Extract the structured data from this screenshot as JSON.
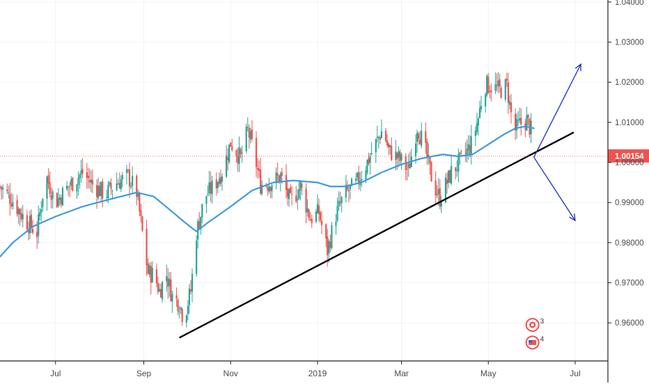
{
  "chart_data": {
    "type": "candlestick",
    "title": "",
    "xlabel": "",
    "ylabel": "",
    "ylim": [
      0.9505,
      1.0405
    ],
    "x_range": [
      "2018-05-23",
      "2019-07-24"
    ],
    "x_ticks": [
      {
        "label": "Jul",
        "date": "2018-07-01"
      },
      {
        "label": "Sep",
        "date": "2018-09-01"
      },
      {
        "label": "Nov",
        "date": "2018-11-01"
      },
      {
        "label": "2019",
        "date": "2019-01-01"
      },
      {
        "label": "Mar",
        "date": "2019-03-01"
      },
      {
        "label": "May",
        "date": "2019-05-01"
      },
      {
        "label": "Jul",
        "date": "2019-07-01"
      }
    ],
    "y_ticks": [
      "0.96000",
      "0.97000",
      "0.98000",
      "0.99000",
      "1.00000",
      "1.01000",
      "1.02000",
      "1.03000",
      "1.04000"
    ],
    "grid": true,
    "last_price": {
      "label": "1.00154",
      "value": 1.00154,
      "color": "#ef5350"
    },
    "up_color": "#26a69a",
    "down_color": "#ef5350",
    "ma_color": "#3d9be0",
    "trendline_color": "#000000",
    "arrow_color": "#1a2fbf",
    "close_anchors": [
      [
        "2018-05-23",
        0.994
      ],
      [
        "2018-06-01",
        0.9905
      ],
      [
        "2018-06-10",
        0.9855
      ],
      [
        "2018-06-18",
        0.9825
      ],
      [
        "2018-06-24",
        0.997
      ],
      [
        "2018-07-01",
        0.99
      ],
      [
        "2018-07-10",
        0.994
      ],
      [
        "2018-07-20",
        0.9975
      ],
      [
        "2018-07-27",
        0.9945
      ],
      [
        "2018-08-05",
        0.992
      ],
      [
        "2018-08-13",
        0.995
      ],
      [
        "2018-08-21",
        0.9965
      ],
      [
        "2018-08-27",
        0.9925
      ],
      [
        "2018-09-01",
        0.98
      ],
      [
        "2018-09-04",
        0.9725
      ],
      [
        "2018-09-08",
        0.972
      ],
      [
        "2018-09-12",
        0.968
      ],
      [
        "2018-09-17",
        0.972
      ],
      [
        "2018-09-21",
        0.9665
      ],
      [
        "2018-09-26",
        0.965
      ],
      [
        "2018-09-29",
        0.961
      ],
      [
        "2018-10-04",
        0.968
      ],
      [
        "2018-10-08",
        0.9825
      ],
      [
        "2018-10-14",
        0.9915
      ],
      [
        "2018-10-21",
        0.9945
      ],
      [
        "2018-10-27",
        0.9985
      ],
      [
        "2018-11-01",
        1.005
      ],
      [
        "2018-11-08",
        1.001
      ],
      [
        "2018-11-13",
        1.008
      ],
      [
        "2018-11-17",
        1.003
      ],
      [
        "2018-11-22",
        0.9945
      ],
      [
        "2018-11-29",
        0.995
      ],
      [
        "2018-12-06",
        0.9965
      ],
      [
        "2018-12-13",
        0.99
      ],
      [
        "2018-12-20",
        0.994
      ],
      [
        "2018-12-27",
        0.986
      ],
      [
        "2019-01-02",
        0.9875
      ],
      [
        "2019-01-08",
        0.978
      ],
      [
        "2019-01-14",
        0.987
      ],
      [
        "2019-01-20",
        0.992
      ],
      [
        "2019-01-28",
        0.9945
      ],
      [
        "2019-02-03",
        0.9985
      ],
      [
        "2019-02-10",
        1.004
      ],
      [
        "2019-02-16",
        1.0085
      ],
      [
        "2019-02-20",
        1.003
      ],
      [
        "2019-02-27",
        1.001
      ],
      [
        "2019-03-06",
        0.998
      ],
      [
        "2019-03-12",
        1.009
      ],
      [
        "2019-03-17",
        1.004
      ],
      [
        "2019-03-23",
        0.995
      ],
      [
        "2019-03-28",
        0.991
      ],
      [
        "2019-04-05",
        0.9975
      ],
      [
        "2019-04-13",
        1.001
      ],
      [
        "2019-04-19",
        1.0045
      ],
      [
        "2019-04-24",
        1.011
      ],
      [
        "2019-04-28",
        1.0195
      ],
      [
        "2019-05-03",
        1.019
      ],
      [
        "2019-05-09",
        1.018
      ],
      [
        "2019-05-14",
        1.019
      ],
      [
        "2019-05-19",
        1.0075
      ],
      [
        "2019-05-23",
        1.0095
      ],
      [
        "2019-05-28",
        1.0105
      ],
      [
        "2019-05-31",
        1.008
      ],
      [
        "2019-06-02",
        1.0015
      ]
    ],
    "moving_average": [
      [
        "2018-05-23",
        0.9765
      ],
      [
        "2018-06-01",
        0.98
      ],
      [
        "2018-06-15",
        0.984
      ],
      [
        "2018-07-01",
        0.9865
      ],
      [
        "2018-07-20",
        0.989
      ],
      [
        "2018-08-10",
        0.991
      ],
      [
        "2018-08-27",
        0.9925
      ],
      [
        "2018-09-08",
        0.9915
      ],
      [
        "2018-09-20",
        0.988
      ],
      [
        "2018-09-30",
        0.985
      ],
      [
        "2018-10-08",
        0.9828
      ],
      [
        "2018-10-16",
        0.985
      ],
      [
        "2018-11-01",
        0.989
      ],
      [
        "2018-11-16",
        0.993
      ],
      [
        "2018-12-01",
        0.995
      ],
      [
        "2018-12-15",
        0.9955
      ],
      [
        "2019-01-01",
        0.995
      ],
      [
        "2019-01-10",
        0.994
      ],
      [
        "2019-01-20",
        0.994
      ],
      [
        "2019-02-01",
        0.995
      ],
      [
        "2019-02-15",
        0.9975
      ],
      [
        "2019-03-01",
        0.9995
      ],
      [
        "2019-03-15",
        1.001
      ],
      [
        "2019-03-30",
        1.002
      ],
      [
        "2019-04-10",
        1.0015
      ],
      [
        "2019-04-20",
        1.002
      ],
      [
        "2019-05-01",
        1.0045
      ],
      [
        "2019-05-12",
        1.007
      ],
      [
        "2019-05-20",
        1.0085
      ],
      [
        "2019-05-27",
        1.009
      ],
      [
        "2019-06-02",
        1.0085
      ]
    ],
    "trendline": [
      [
        "2018-09-26",
        0.9563
      ],
      [
        "2019-06-30",
        1.0075
      ]
    ],
    "projection_arrows": [
      {
        "direction": "up",
        "from": [
          "2019-06-02",
          1.0013
        ],
        "to": [
          "2019-07-05",
          1.0245
        ]
      },
      {
        "direction": "down",
        "from": [
          "2019-06-02",
          1.0013
        ],
        "to": [
          "2019-07-01",
          0.9855
        ]
      }
    ],
    "event_markers": [
      {
        "date": "2019-06-01",
        "value": 0.9595,
        "label": "3",
        "icon": "alert-icon"
      },
      {
        "date": "2019-06-01",
        "value": 0.9551,
        "label": "4",
        "icon": "us-flag-icon"
      }
    ]
  }
}
